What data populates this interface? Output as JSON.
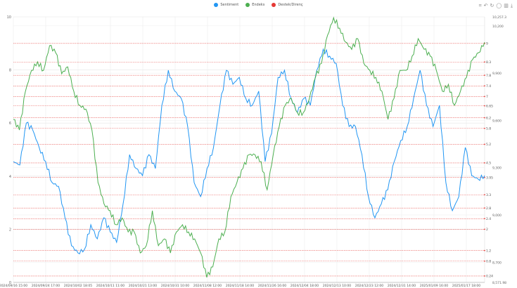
{
  "chart_data": {
    "type": "line",
    "title": "",
    "legend": {
      "position": "top-center",
      "items": [
        {
          "name": "Sentiment",
          "color": "#2196f3"
        },
        {
          "name": "Endeks",
          "color": "#4caf50"
        },
        {
          "name": "Destek/Direnç",
          "color": "#e53935"
        }
      ]
    },
    "grid": true,
    "x_tick_labels": [
      "2024/09/16 15:00",
      "2024/09/24 17:00",
      "2024/10/02 18:05",
      "2024/10/11 11:00",
      "2024/10/21 13:00",
      "2024/10/31 10:00",
      "2024/11/08 12:00",
      "2024/11/18 14:00",
      "2024/11/26 16:00",
      "2024/12/04 18:00",
      "2024/12/13 10:00",
      "2024/12/23 12:00",
      "2024/12/31 14:00",
      "2025/01/09 16:00",
      "2025/01/17 18:00"
    ],
    "left_axis": {
      "ylim": [
        0,
        10
      ],
      "ticks": [
        "0",
        "2",
        "4",
        "6",
        "8",
        "10"
      ]
    },
    "right_axis": {
      "ylim": [
        8571.98,
        10257.3
      ],
      "ticks": [
        "10,257.3",
        "10,200",
        "9,900",
        "9,600",
        "9,300",
        "9,000",
        "8,700",
        "8,571.98"
      ],
      "tick_values": [
        10257.3,
        10200,
        9900,
        9600,
        9300,
        9000,
        8700,
        8571.98
      ]
    },
    "support_resistance": {
      "values": [
        9,
        8.3,
        7.8,
        7.4,
        7,
        6.65,
        6.2,
        5.8,
        5.2,
        4.5,
        3.95,
        3.3,
        2.8,
        2.4,
        2,
        1.2,
        0.8,
        0.24
      ],
      "labels": [
        "9",
        "8.3",
        "7.8",
        "7.4",
        "7",
        "6.65",
        "6.2",
        "5.8",
        "5.2",
        "4.5",
        "3.95",
        "3.3",
        "2.8",
        "2.4",
        "2",
        "1.2",
        "0.8",
        "0.24"
      ]
    },
    "series": [
      {
        "name": "Sentiment",
        "axis": "left",
        "color": "#2196f3",
        "values": [
          4.55,
          4.42,
          6.0,
          5.74,
          5.08,
          4.55,
          3.76,
          3.62,
          2.43,
          1.38,
          1.11,
          1.24,
          2.17,
          1.64,
          2.43,
          1.9,
          1.51,
          2.96,
          4.81,
          4.29,
          4.02,
          4.81,
          4.29,
          6.67,
          7.99,
          7.2,
          6.93,
          5.87,
          3.76,
          3.23,
          4.29,
          5.08,
          6.67,
          7.99,
          7.46,
          7.72,
          6.93,
          6.67,
          7.2,
          4.55,
          5.61,
          7.72,
          7.99,
          6.93,
          6.4,
          6.93,
          6.67,
          7.99,
          8.78,
          8.52,
          8.25,
          6.67,
          5.87,
          5.87,
          4.81,
          3.23,
          2.43,
          2.96,
          3.49,
          4.55,
          5.34,
          5.87,
          6.93,
          7.99,
          6.67,
          5.87,
          6.67,
          3.76,
          2.7,
          3.23,
          5.08,
          4.02,
          3.89,
          4.02
        ]
      },
      {
        "name": "Endeks",
        "axis": "right",
        "color": "#4caf50",
        "values": [
          9607,
          9539,
          9785,
          9918,
          9972,
          9918,
          10075,
          10030,
          9896,
          9940,
          9785,
          9696,
          9672,
          9539,
          9206,
          9071,
          9027,
          8938,
          8981,
          8892,
          8892,
          8759,
          8805,
          9027,
          8805,
          8848,
          8759,
          8892,
          8938,
          8892,
          8848,
          8759,
          8604,
          8670,
          8848,
          8892,
          9116,
          9206,
          9295,
          9382,
          9382,
          9339,
          9160,
          9382,
          9561,
          9696,
          9740,
          9650,
          9650,
          9740,
          9873,
          9962,
          10141,
          10252,
          10186,
          10097,
          10051,
          10119,
          9962,
          9918,
          9873,
          9785,
          9607,
          9740,
          9918,
          9918,
          10008,
          10119,
          10051,
          10008,
          9918,
          9785,
          9829,
          9696,
          9785,
          9873,
          9986,
          10030,
          10097
        ]
      }
    ]
  },
  "toolbox": {
    "icons": [
      "zoom-icon",
      "zoom-reset-icon",
      "restore-icon",
      "line-icon",
      "bar-icon",
      "save-image-icon"
    ]
  }
}
